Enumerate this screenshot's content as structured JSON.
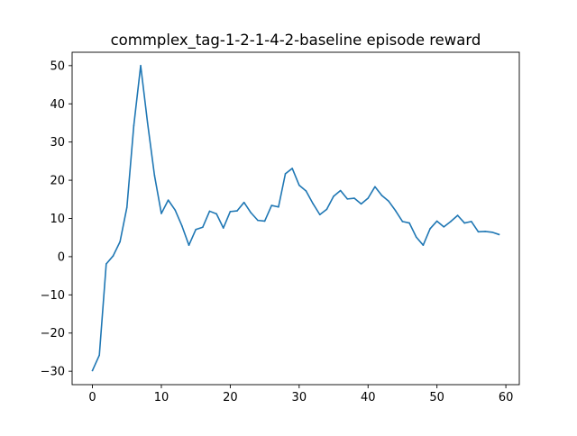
{
  "chart_data": {
    "type": "line",
    "title": "commplex_tag-1-2-1-4-2-baseline episode reward",
    "xlabel": "",
    "ylabel": "",
    "xlim": [
      -2.95,
      61.95
    ],
    "ylim": [
      -33.5,
      53.5
    ],
    "xticks": [
      0,
      10,
      20,
      30,
      40,
      50,
      60
    ],
    "yticks": [
      -30,
      -20,
      -10,
      0,
      10,
      20,
      30,
      40,
      50
    ],
    "grid": false,
    "series": [
      {
        "color": "#1f77b4",
        "x": [
          0,
          1,
          2,
          3,
          4,
          5,
          6,
          7,
          8,
          9,
          10,
          11,
          12,
          13,
          14,
          15,
          16,
          17,
          18,
          19,
          20,
          21,
          22,
          23,
          24,
          25,
          26,
          27,
          28,
          29,
          30,
          31,
          32,
          33,
          34,
          35,
          36,
          37,
          38,
          39,
          40,
          41,
          42,
          43,
          44,
          45,
          46,
          47,
          48,
          49,
          50,
          51,
          52,
          53,
          54,
          55,
          56,
          57,
          58,
          59
        ],
        "values": [
          -29.8,
          -25.8,
          -1.9,
          0.2,
          3.9,
          12.9,
          34.3,
          50.0,
          35.0,
          21.3,
          11.3,
          14.8,
          12.2,
          8.0,
          3.0,
          7.1,
          7.7,
          11.9,
          11.2,
          7.5,
          11.8,
          12.0,
          14.2,
          11.5,
          9.5,
          9.3,
          13.4,
          13.0,
          21.7,
          23.1,
          18.7,
          17.2,
          13.9,
          11.0,
          12.4,
          15.8,
          17.3,
          15.1,
          15.3,
          13.8,
          15.3,
          18.3,
          16.0,
          14.5,
          12.0,
          9.2,
          8.8,
          5.1,
          3.0,
          7.3,
          9.3,
          7.8,
          9.2,
          10.8,
          8.8,
          9.2,
          6.5,
          6.6,
          6.4,
          5.8
        ]
      }
    ]
  }
}
